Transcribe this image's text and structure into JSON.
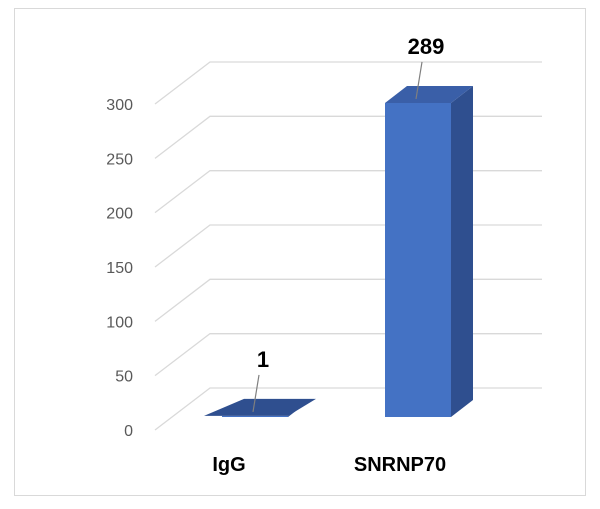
{
  "chart_data": {
    "type": "bar",
    "style": "3d-column",
    "categories": [
      "IgG",
      "SNRNP70"
    ],
    "values": [
      1,
      289
    ],
    "data_labels": [
      "1",
      "289"
    ],
    "ylim": [
      0,
      300
    ],
    "yticks": [
      0,
      50,
      100,
      150,
      200,
      250,
      300
    ],
    "ytick_labels": [
      "0",
      "50",
      "100",
      "150",
      "200",
      "250",
      "300"
    ],
    "grid": true,
    "legend": "none",
    "colors": {
      "bar_front": "#4472C4",
      "bar_side": "#2F4F8F",
      "bar_top": "#3A5FA8",
      "grid": "#d9d9d9",
      "tick_text": "#595959",
      "frame": "#d9d9d9"
    }
  }
}
